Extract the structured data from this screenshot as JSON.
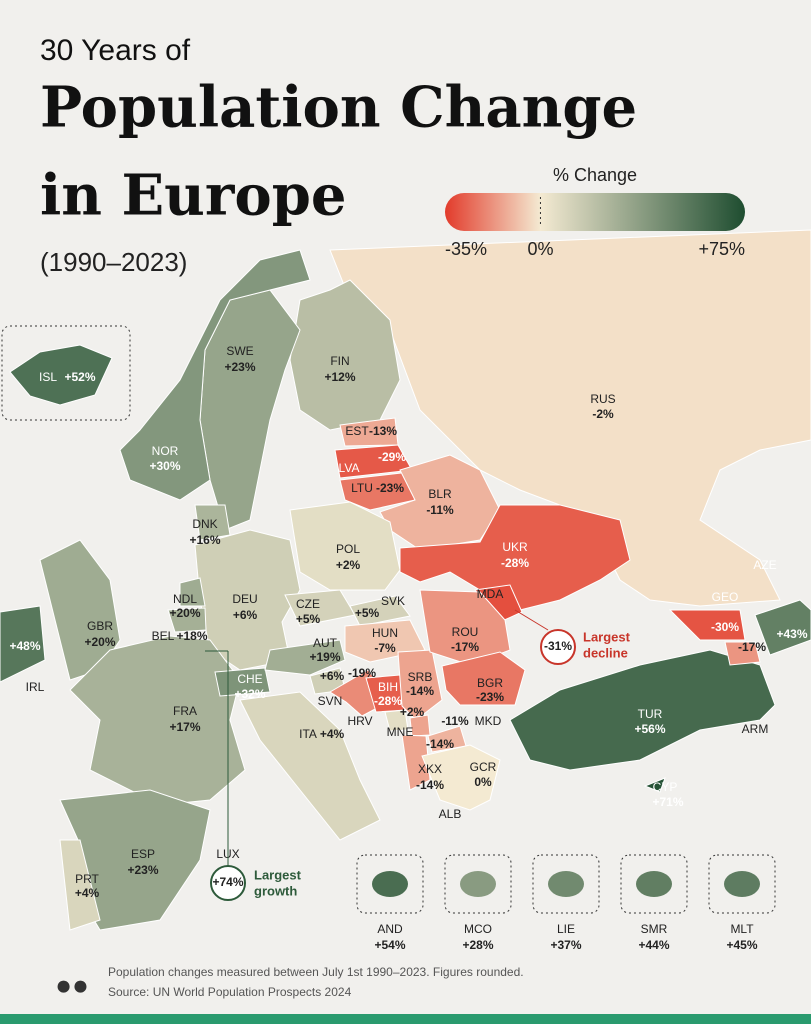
{
  "header": {
    "line1": "30 Years of",
    "line2": "Population Change",
    "line3": "in Europe",
    "period": "(1990–2023)"
  },
  "legend": {
    "title": "% Change",
    "ticks": [
      {
        "value": -35,
        "label": "-35%"
      },
      {
        "value": 0,
        "label": "0%"
      },
      {
        "value": 75,
        "label": "+75%"
      }
    ],
    "colors": [
      "#e23b2b",
      "#f4ead2",
      "#1e4d30"
    ]
  },
  "countries": [
    {
      "code": "RUS",
      "value": -2,
      "label": "-2%"
    },
    {
      "code": "FIN",
      "value": 12,
      "label": "+12%"
    },
    {
      "code": "SWE",
      "value": 23,
      "label": "+23%"
    },
    {
      "code": "NOR",
      "value": 30,
      "label": "+30%"
    },
    {
      "code": "ISL",
      "value": 52,
      "label": "+52%"
    },
    {
      "code": "EST",
      "value": -13,
      "label": "-13%"
    },
    {
      "code": "LVA",
      "value": -29,
      "label": "-29%"
    },
    {
      "code": "LTU",
      "value": -23,
      "label": "-23%"
    },
    {
      "code": "BLR",
      "value": -11,
      "label": "-11%"
    },
    {
      "code": "UKR",
      "value": -28,
      "label": "-28%"
    },
    {
      "code": "MDA",
      "value": -31,
      "label": "-31%"
    },
    {
      "code": "POL",
      "value": 2,
      "label": "+2%"
    },
    {
      "code": "DEU",
      "value": 6,
      "label": "+6%"
    },
    {
      "code": "DNK",
      "value": 16,
      "label": "+16%"
    },
    {
      "code": "NDL",
      "value": 20,
      "label": "+20%"
    },
    {
      "code": "BEL",
      "value": 18,
      "label": "+18%"
    },
    {
      "code": "LUX",
      "value": 74,
      "label": "+74%"
    },
    {
      "code": "GBR",
      "value": 20,
      "label": "+20%"
    },
    {
      "code": "IRL",
      "value": 48,
      "label": "+48%"
    },
    {
      "code": "FRA",
      "value": 17,
      "label": "+17%"
    },
    {
      "code": "ESP",
      "value": 23,
      "label": "+23%"
    },
    {
      "code": "PRT",
      "value": 4,
      "label": "+4%"
    },
    {
      "code": "CHE",
      "value": 32,
      "label": "+32%"
    },
    {
      "code": "ITA",
      "value": 4,
      "label": "+4%"
    },
    {
      "code": "AUT",
      "value": 19,
      "label": "+19%"
    },
    {
      "code": "CZE",
      "value": 5,
      "label": "+5%"
    },
    {
      "code": "SVK",
      "value": 5,
      "label": "+5%"
    },
    {
      "code": "HUN",
      "value": -7,
      "label": "-7%"
    },
    {
      "code": "SVN",
      "value": 6,
      "label": "+6%"
    },
    {
      "code": "HRV",
      "value": -19,
      "label": "-19%"
    },
    {
      "code": "BIH",
      "value": -28,
      "label": "-28%"
    },
    {
      "code": "SRB",
      "value": -14,
      "label": "-14%"
    },
    {
      "code": "MNE",
      "value": 2,
      "label": "+2%"
    },
    {
      "code": "XKX",
      "value": -14,
      "label": "-14%"
    },
    {
      "code": "MKD",
      "value": -11,
      "label": "-11%"
    },
    {
      "code": "ALB",
      "value": -14,
      "label": "-14%"
    },
    {
      "code": "GCR",
      "value": 0,
      "label": "0%"
    },
    {
      "code": "ROU",
      "value": -17,
      "label": "-17%"
    },
    {
      "code": "BGR",
      "value": -23,
      "label": "-23%"
    },
    {
      "code": "TUR",
      "value": 56,
      "label": "+56%"
    },
    {
      "code": "CYP",
      "value": 71,
      "label": "+71%"
    },
    {
      "code": "GEO",
      "value": -30,
      "label": "-30%"
    },
    {
      "code": "ARM",
      "value": -17,
      "label": "-17%"
    },
    {
      "code": "AZE",
      "value": 43,
      "label": "+43%"
    }
  ],
  "microstates": [
    {
      "code": "AND",
      "value": 54,
      "label": "+54%"
    },
    {
      "code": "MCO",
      "value": 28,
      "label": "+28%"
    },
    {
      "code": "LIE",
      "value": 37,
      "label": "+37%"
    },
    {
      "code": "SMR",
      "value": 44,
      "label": "+44%"
    },
    {
      "code": "MLT",
      "value": 45,
      "label": "+45%"
    }
  ],
  "annotations": {
    "decline": [
      "Largest",
      "decline"
    ],
    "growth": [
      "Largest",
      "growth"
    ]
  },
  "footer": {
    "note": "Population changes measured between July 1st 1990–2023. Figures rounded.",
    "source": "Source: UN World Population Prospects 2024"
  }
}
